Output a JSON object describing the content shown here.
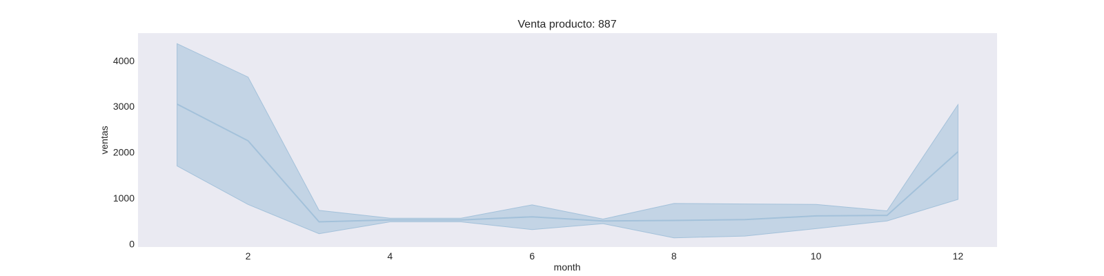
{
  "chart_data": {
    "type": "line",
    "title": "Venta producto: 887",
    "xlabel": "month",
    "ylabel": "ventas",
    "x": [
      1,
      2,
      3,
      4,
      5,
      6,
      7,
      8,
      9,
      10,
      11,
      12
    ],
    "series": [
      {
        "values": [
          3050,
          2250,
          480,
          520,
          520,
          590,
          500,
          510,
          530,
          610,
          620,
          2010
        ],
        "ci_lower": [
          1700,
          860,
          220,
          480,
          480,
          310,
          440,
          130,
          170,
          330,
          500,
          970
        ],
        "ci_upper": [
          4370,
          3640,
          730,
          560,
          560,
          850,
          540,
          880,
          870,
          860,
          720,
          3040
        ],
        "color": "#a3c1da"
      }
    ],
    "xticks": [
      2,
      4,
      6,
      8,
      10,
      12
    ],
    "yticks": [
      0,
      1000,
      2000,
      3000,
      4000
    ],
    "xlim": [
      0.45,
      12.55
    ],
    "ylim": [
      -70,
      4600
    ],
    "grid": false,
    "plot_background": "#eaeaf2",
    "band_color": "#a3c1da"
  }
}
